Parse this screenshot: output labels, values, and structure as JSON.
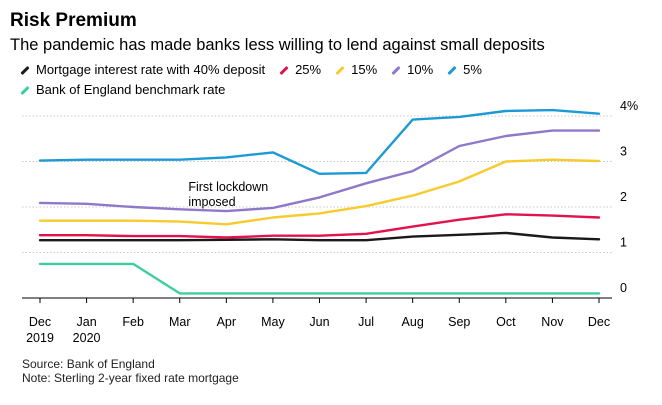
{
  "chart_data": {
    "type": "line",
    "title": "Risk Premium",
    "subtitle": "The pandemic has made banks less willing to lend against small deposits",
    "x": [
      "Dec 2019",
      "Jan 2020",
      "Feb",
      "Mar",
      "Apr",
      "May",
      "Jun",
      "Jul",
      "Aug",
      "Sep",
      "Oct",
      "Nov",
      "Dec"
    ],
    "x_tick_lines": [
      [
        "Dec",
        "2019"
      ],
      [
        "Jan",
        "2020"
      ],
      [
        "Feb",
        ""
      ],
      [
        "Mar",
        ""
      ],
      [
        "Apr",
        ""
      ],
      [
        "May",
        ""
      ],
      [
        "Jun",
        ""
      ],
      [
        "Jul",
        ""
      ],
      [
        "Aug",
        ""
      ],
      [
        "Sep",
        ""
      ],
      [
        "Oct",
        ""
      ],
      [
        "Nov",
        ""
      ],
      [
        "Dec",
        ""
      ]
    ],
    "ylim": [
      0,
      4
    ],
    "y_ticks": [
      0,
      1,
      2,
      3,
      4
    ],
    "y_tick_labels": [
      "0",
      "1",
      "2",
      "3",
      "4%"
    ],
    "grid": true,
    "legend_position": "top-left",
    "series": [
      {
        "name": "Mortgage interest rate with 40% deposit",
        "color": "#1a1a1a",
        "values": [
          1.27,
          1.27,
          1.27,
          1.27,
          1.28,
          1.29,
          1.27,
          1.27,
          1.35,
          1.39,
          1.43,
          1.33,
          1.29
        ]
      },
      {
        "name": "25%",
        "color": "#e2134b",
        "values": [
          1.38,
          1.38,
          1.36,
          1.36,
          1.33,
          1.37,
          1.37,
          1.41,
          1.57,
          1.72,
          1.84,
          1.81,
          1.77
        ]
      },
      {
        "name": "15%",
        "color": "#f7cb2e",
        "values": [
          1.7,
          1.7,
          1.7,
          1.68,
          1.62,
          1.77,
          1.86,
          2.02,
          2.25,
          2.56,
          3.0,
          3.04,
          3.01
        ]
      },
      {
        "name": "10%",
        "color": "#8f78c9",
        "values": [
          2.09,
          2.07,
          2.0,
          1.95,
          1.91,
          1.98,
          2.21,
          2.52,
          2.79,
          3.34,
          3.56,
          3.68,
          3.68
        ]
      },
      {
        "name": "5%",
        "color": "#1d9ad6",
        "values": [
          3.02,
          3.04,
          3.04,
          3.04,
          3.09,
          3.2,
          2.73,
          2.75,
          3.92,
          3.98,
          4.11,
          4.13,
          4.05
        ]
      },
      {
        "name": "Bank of England benchmark rate",
        "color": "#3ccf9c",
        "values": [
          0.75,
          0.75,
          0.75,
          0.1,
          0.1,
          0.1,
          0.1,
          0.1,
          0.1,
          0.1,
          0.1,
          0.1,
          0.1
        ]
      }
    ],
    "annotations": [
      {
        "lines": [
          "First lockdown",
          "imposed"
        ],
        "x": "Apr",
        "y": 2.35
      }
    ]
  },
  "footer": {
    "source": "Source: Bank of England",
    "note": "Note: Sterling 2-year fixed rate mortgage"
  }
}
